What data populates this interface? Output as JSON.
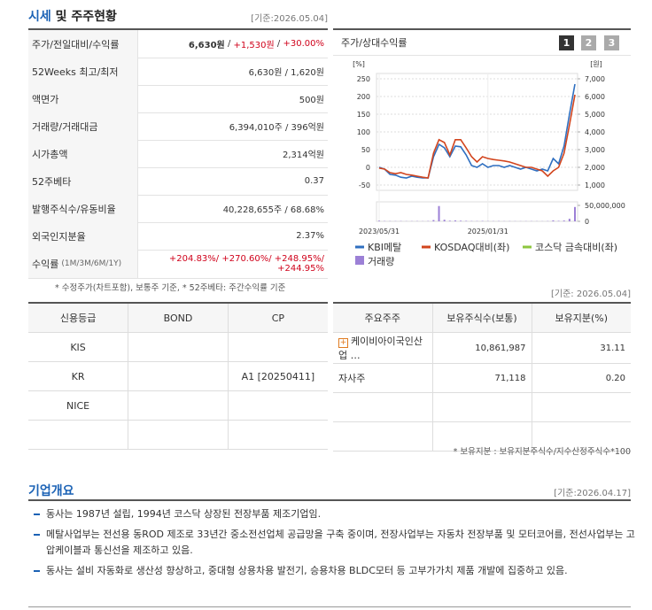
{
  "header": {
    "title": [
      "시세",
      "및 주주현황"
    ],
    "date": "[기준:2026.05.04]"
  },
  "quote": {
    "rows": [
      {
        "label": "주가/전일대비/수익률",
        "value": [
          "6,630원",
          " / ",
          "+1,530원",
          " / ",
          "+30.00%"
        ]
      },
      {
        "label": "52Weeks 최고/최저",
        "value": [
          "6,630원 / 1,620원"
        ]
      },
      {
        "label": "액면가",
        "value": [
          "500원"
        ]
      },
      {
        "label": "거래량/거래대금",
        "value": [
          "6,394,010주 / 396억원"
        ]
      },
      {
        "label": "시가총액",
        "value": [
          "2,314억원"
        ]
      },
      {
        "label": "52주베타",
        "value": [
          "0.37"
        ]
      },
      {
        "label": "발행주식수/유동비율",
        "value": [
          "40,228,655주 / 68.68%"
        ]
      },
      {
        "label": "외국인지분율",
        "value": [
          "2.37%"
        ]
      },
      {
        "label": "수익률",
        "label_sub": "(1M/3M/6M/1Y)",
        "value": [
          "+204.83%/ +270.60%/ +248.95%/ +244.95%"
        ]
      }
    ],
    "note": "* 수정주가(차트포함), 보통주 기준, * 52주베타: 주간수익률 기준"
  },
  "chart_tab": {
    "title": "주가/상대수익률",
    "buttons": [
      "1",
      "2",
      "3"
    ]
  },
  "chart_data": {
    "type": "line",
    "y_unit": "[%]",
    "y2_unit": "[원]",
    "categories": [
      "2023/05/31",
      null,
      null,
      null,
      null,
      null,
      null,
      null,
      null,
      null,
      null,
      null,
      null,
      null,
      null,
      null,
      null,
      null,
      null,
      null,
      "2025/01/31",
      null,
      null,
      null,
      null,
      null,
      null,
      null,
      null,
      null,
      null,
      null,
      null,
      null,
      null,
      null,
      null
    ],
    "series": [
      {
        "name": "KBI메탈",
        "color": "#2f6fc0",
        "values": [
          0,
          -5,
          -20,
          -22,
          -28,
          -30,
          -25,
          -28,
          -30,
          -30,
          30,
          65,
          55,
          30,
          60,
          58,
          35,
          5,
          0,
          10,
          0,
          5,
          5,
          0,
          5,
          0,
          -5,
          0,
          -5,
          -10,
          -5,
          -10,
          25,
          10,
          60,
          150,
          235
        ]
      },
      {
        "name": "KOSDAQ대비(좌)",
        "color": "#d2451e",
        "values": [
          -2,
          -5,
          -15,
          -18,
          -15,
          -20,
          -22,
          -25,
          -28,
          -30,
          40,
          78,
          70,
          35,
          78,
          78,
          55,
          30,
          15,
          30,
          25,
          22,
          20,
          18,
          15,
          10,
          5,
          0,
          0,
          -5,
          -10,
          -25,
          -10,
          0,
          40,
          120,
          205
        ]
      },
      {
        "name": "코스닥 금속대비(좌)",
        "color": "#8dc63f",
        "values": [
          null,
          null,
          null,
          null,
          null,
          null,
          null,
          null,
          null,
          null,
          null,
          null,
          null,
          null,
          null,
          null,
          null,
          null,
          null,
          null,
          null,
          null,
          null,
          null,
          null,
          null,
          null,
          null,
          null,
          null,
          null,
          null,
          null,
          null,
          null,
          null,
          null
        ]
      }
    ],
    "volume": {
      "name": "거래량",
      "color": "#9c80d6",
      "values": [
        2000000,
        1000000,
        800000,
        700000,
        900000,
        600000,
        700000,
        800000,
        600000,
        1000000,
        4000000,
        48000000,
        5000000,
        2000000,
        3000000,
        2000000,
        1500000,
        1000000,
        900000,
        1200000,
        800000,
        700000,
        900000,
        600000,
        700000,
        600000,
        500000,
        600000,
        700000,
        600000,
        500000,
        800000,
        3000000,
        1500000,
        2500000,
        8000000,
        45000000
      ]
    },
    "ylim": [
      -50,
      250
    ],
    "yticks": [
      -50,
      0,
      50,
      100,
      150,
      200,
      250
    ],
    "y2lim": [
      1000,
      7000
    ],
    "y2ticks": [
      {
        "value": 1000,
        "label": "1,000"
      },
      {
        "value": 2000,
        "label": "2,000"
      },
      {
        "value": 3000,
        "label": "3,000"
      },
      {
        "value": 4000,
        "label": "4,000"
      },
      {
        "value": 5000,
        "label": "5,000"
      },
      {
        "value": 6000,
        "label": "6,000"
      },
      {
        "value": 7000,
        "label": "7,000"
      }
    ],
    "vlim": [
      0,
      50000000
    ],
    "vticks": [
      0,
      {
        "value": 50000000,
        "label": "50,000,000"
      }
    ],
    "grid": true,
    "legend": "bottom"
  },
  "credit": {
    "headers": [
      "신용등급",
      "BOND",
      "CP"
    ],
    "rows": [
      [
        "KIS",
        null,
        null
      ],
      [
        "KR",
        null,
        "A1 [20250411]"
      ],
      [
        "NICE",
        null,
        null
      ]
    ]
  },
  "holders": {
    "date": "[기준: 2026.05.04]",
    "headers": [
      "주요주주",
      "보유주식수(보통)",
      "보유지분(%)"
    ],
    "rows": [
      [
        "케이비아이국인산업 …",
        "10,861,987",
        "31.11"
      ],
      [
        "자사주",
        "71,118",
        "0.20"
      ]
    ],
    "note": "* 보유지분 : 보유지분주식수/지수산정주식수*100"
  },
  "overview": {
    "title": "기업개요",
    "date": "[기준:2026.04.17]",
    "items": [
      "동사는 1987년 설립, 1994년 코스닥 상장된 전장부품 제조기업임.",
      "메탈사업부는 전선용 동ROD 제조로 33년간 중소전선업체 공급망을 구축 중이며, 전장사업부는 자동차 전장부품 및 모터코어를, 전선사업부는 고압케이블과 통신선을 제조하고 있음.",
      "동사는 설비 자동화로 생산성 향상하고, 중대형 상용차용 발전기, 승용차용 BLDC모터 등 고부가가치 제품 개발에 집중하고 있음."
    ]
  }
}
